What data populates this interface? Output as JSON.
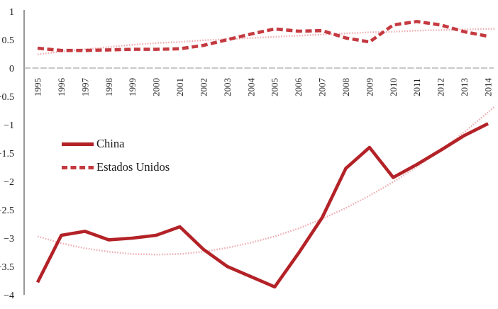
{
  "chart_data": {
    "type": "line",
    "title": "",
    "xlabel": "",
    "ylabel": "",
    "categories": [
      "1995",
      "1996",
      "1997",
      "1998",
      "1999",
      "2000",
      "2001",
      "2002",
      "2003",
      "2004",
      "2005",
      "2006",
      "2007",
      "2008",
      "2009",
      "2010",
      "2011",
      "2012",
      "2013",
      "2014"
    ],
    "series": [
      {
        "name": "China",
        "style": "solid",
        "color": "#b32227",
        "values": [
          -3.78,
          -2.95,
          -2.88,
          -3.03,
          -3.0,
          -2.95,
          -2.8,
          -3.2,
          -3.5,
          -3.68,
          -3.86,
          -3.27,
          -2.64,
          -1.77,
          -1.4,
          -1.93,
          -1.7,
          -1.45,
          -1.19,
          -0.98
        ]
      },
      {
        "name": "Estados Unidos",
        "style": "dashed",
        "color": "#c43a40",
        "values": [
          0.35,
          0.31,
          0.31,
          0.32,
          0.33,
          0.33,
          0.34,
          0.4,
          0.5,
          0.6,
          0.69,
          0.65,
          0.66,
          0.53,
          0.46,
          0.76,
          0.82,
          0.76,
          0.64,
          0.56
        ]
      }
    ],
    "trendlines": [
      {
        "for": "China",
        "style": "dotted",
        "color": "#eeaeb2",
        "values": [
          -2.97,
          -3.09,
          -3.18,
          -3.24,
          -3.28,
          -3.29,
          -3.28,
          -3.24,
          -3.17,
          -3.08,
          -2.97,
          -2.83,
          -2.66,
          -2.47,
          -2.25,
          -2.01,
          -1.74,
          -1.45,
          -1.13,
          -0.78
        ]
      },
      {
        "for": "Estados Unidos",
        "style": "dotted",
        "color": "#eeaeb2",
        "values": [
          0.24,
          0.29,
          0.33,
          0.37,
          0.41,
          0.44,
          0.46,
          0.49,
          0.51,
          0.53,
          0.55,
          0.57,
          0.59,
          0.61,
          0.63,
          0.64,
          0.66,
          0.67,
          0.68,
          0.69
        ]
      }
    ],
    "y_axis": {
      "min": -4,
      "max": 1,
      "tick_step": 0.5,
      "tick_values": [
        1,
        0.5,
        0,
        -0.5,
        -1,
        -1.5,
        -2,
        -2.5,
        -3,
        -3.5,
        -4
      ],
      "tick_labels": [
        "1",
        "0.5",
        "0",
        "−0.5",
        "−1",
        "−1.5",
        "−2",
        "−2.5",
        "−3",
        "−3.5",
        "−4"
      ]
    },
    "x_axis": {
      "tick_labels_rotation_deg": -90
    },
    "grid": "off",
    "legend": {
      "position": "middle-left",
      "entries": [
        "China",
        "Estados Unidos"
      ]
    }
  }
}
